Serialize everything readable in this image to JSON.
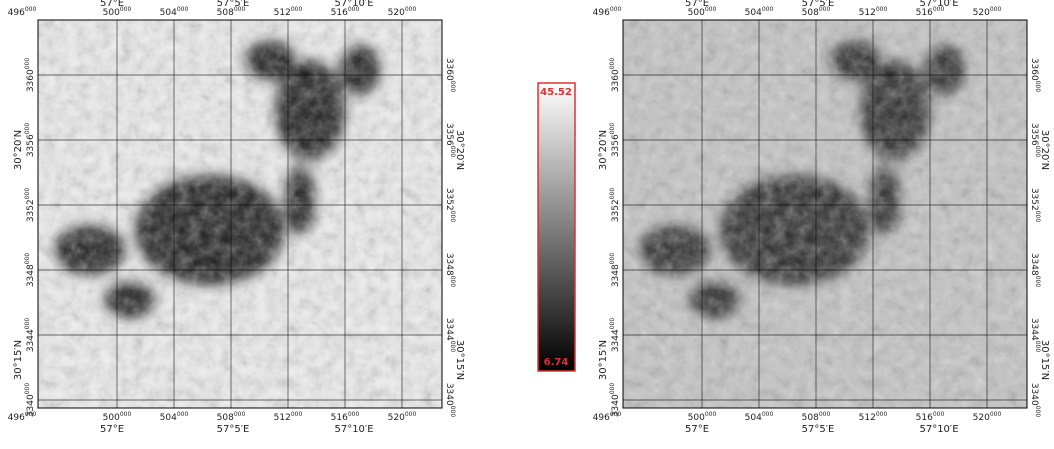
{
  "grid": {
    "longitude": [
      "57°E",
      "57°5′E",
      "57°10′E"
    ],
    "latitude": [
      "30°20′N",
      "30°15′N"
    ],
    "easting": [
      "496000",
      "500000",
      "504000",
      "508000",
      "512000",
      "516000",
      "520000"
    ],
    "northing": [
      "3360000",
      "3356000",
      "3352000",
      "3348000",
      "3344000",
      "3340000"
    ]
  },
  "colorbar": {
    "max": 45.52,
    "min": 6.74
  }
}
